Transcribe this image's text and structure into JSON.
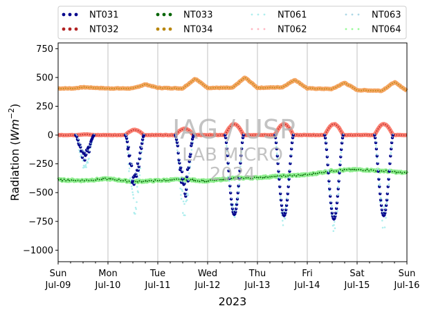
{
  "chart_data": {
    "type": "line",
    "title": "",
    "xlabel": "2023",
    "ylabel": "Radiation (Wm⁻²)",
    "ylabel_main": "Radiation (",
    "ylabel_unit": "Wm",
    "ylabel_exp": "−2",
    "ylabel_close": ")",
    "ylim": [
      -1100,
      800
    ],
    "yticks": [
      -1000,
      -750,
      -500,
      -250,
      0,
      250,
      500,
      750
    ],
    "ytick_labels": [
      "−1000",
      "−750",
      "−500",
      "−250",
      "0",
      "250",
      "500",
      "750"
    ],
    "xlim": [
      0,
      7
    ],
    "xticks": [
      {
        "x": 0,
        "day": "Sun",
        "date": "Jul-09"
      },
      {
        "x": 1,
        "day": "Mon",
        "date": "Jul-10"
      },
      {
        "x": 2,
        "day": "Tue",
        "date": "Jul-11"
      },
      {
        "x": 3,
        "day": "Wed",
        "date": "Jul-12"
      },
      {
        "x": 4,
        "day": "Thu",
        "date": "Jul-13"
      },
      {
        "x": 5,
        "day": "Fri",
        "date": "Jul-14"
      },
      {
        "x": 6,
        "day": "Sat",
        "date": "Jul-15"
      },
      {
        "x": 7,
        "day": "Sun",
        "date": "Jul-16"
      }
    ],
    "grid": "vertical",
    "legend_position": "top, above plot",
    "watermark": [
      "IAG / USP",
      "LAB MICRO",
      "2024"
    ],
    "colors": {
      "NT031": "#00008b",
      "NT032": "#b22222",
      "NT033": "#006400",
      "NT034": "#b8860b",
      "NT061": "#afeeee",
      "NT062": "#ffb6c1",
      "NT063": "#add8e6",
      "NT064": "#98fb98",
      "band_lw": "#f4a460",
      "band_lwout": "#fa8072",
      "band_net": "#90ee90"
    },
    "series": [
      {
        "name": "NT031",
        "role": "shortwave_net_dark",
        "peak_min": [
          -200,
          -420,
          -480,
          -690,
          -700,
          -730,
          -700
        ]
      },
      {
        "name": "NT032",
        "role": "daytime_hump",
        "peak": [
          5,
          45,
          55,
          95,
          95,
          95,
          95
        ]
      },
      {
        "name": "NT033",
        "role": "net_band",
        "x": [
          0,
          0.5,
          1.0,
          1.5,
          2.0,
          2.5,
          3.0,
          3.5,
          4.0,
          4.5,
          5.0,
          5.5,
          6.0,
          6.5,
          7.0
        ],
        "y": [
          -390,
          -395,
          -380,
          -405,
          -395,
          -385,
          -400,
          -375,
          -370,
          -355,
          -345,
          -310,
          -300,
          -310,
          -330
        ]
      },
      {
        "name": "NT034",
        "role": "upper_band",
        "x": [
          0,
          0.3,
          0.5,
          0.75,
          1.0,
          1.5,
          1.75,
          2.0,
          2.5,
          2.75,
          3.0,
          3.5,
          3.75,
          4.0,
          4.5,
          4.75,
          5.0,
          5.5,
          5.75,
          6.0,
          6.5,
          6.75,
          7.0
        ],
        "y": [
          405,
          405,
          415,
          410,
          405,
          405,
          440,
          410,
          405,
          490,
          410,
          410,
          500,
          410,
          415,
          480,
          405,
          400,
          455,
          390,
          385,
          460,
          385
        ]
      },
      {
        "name": "NT061",
        "role": "shortwave_net_light",
        "peak_min": [
          -260,
          -600,
          -620,
          -700,
          -720,
          -760,
          -720
        ]
      },
      {
        "name": "NT062",
        "role": "hidden_under_NT032"
      },
      {
        "name": "NT063",
        "role": "hidden_under_NT031"
      },
      {
        "name": "NT064",
        "role": "net_band_light"
      }
    ]
  }
}
